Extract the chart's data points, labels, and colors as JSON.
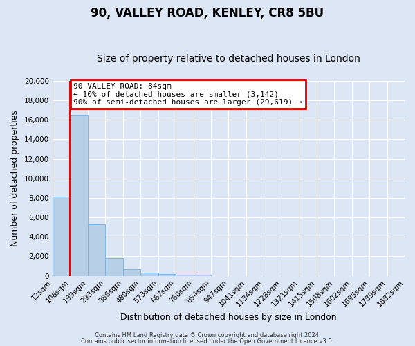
{
  "title": "90, VALLEY ROAD, KENLEY, CR8 5BU",
  "subtitle": "Size of property relative to detached houses in London",
  "xlabel": "Distribution of detached houses by size in London",
  "ylabel": "Number of detached properties",
  "bar_values": [
    8100,
    16500,
    5300,
    1800,
    700,
    300,
    200,
    150,
    100,
    0,
    0,
    0,
    0,
    0,
    0,
    0,
    0,
    0,
    0,
    0
  ],
  "bar_labels": [
    "12sqm",
    "106sqm",
    "199sqm",
    "293sqm",
    "386sqm",
    "480sqm",
    "573sqm",
    "667sqm",
    "760sqm",
    "854sqm",
    "947sqm",
    "1041sqm",
    "1134sqm",
    "1228sqm",
    "1321sqm",
    "1415sqm",
    "1508sqm",
    "1602sqm",
    "1695sqm",
    "1789sqm",
    "1882sqm"
  ],
  "bar_color": "#b8cfe8",
  "bar_edge_color": "#7aadd4",
  "ylim": [
    0,
    20000
  ],
  "yticks": [
    0,
    2000,
    4000,
    6000,
    8000,
    10000,
    12000,
    14000,
    16000,
    18000,
    20000
  ],
  "red_line_x": 1,
  "annotation_title": "90 VALLEY ROAD: 84sqm",
  "annotation_line1": "← 10% of detached houses are smaller (3,142)",
  "annotation_line2": "90% of semi-detached houses are larger (29,619) →",
  "annotation_box_color": "#ffffff",
  "annotation_box_edge": "#cc0000",
  "footer_line1": "Contains HM Land Registry data © Crown copyright and database right 2024.",
  "footer_line2": "Contains public sector information licensed under the Open Government Licence v3.0.",
  "background_color": "#dce6f5",
  "grid_color": "#ffffff",
  "title_fontsize": 12,
  "subtitle_fontsize": 10,
  "axis_label_fontsize": 9,
  "tick_fontsize": 7.5,
  "annotation_fontsize": 8
}
